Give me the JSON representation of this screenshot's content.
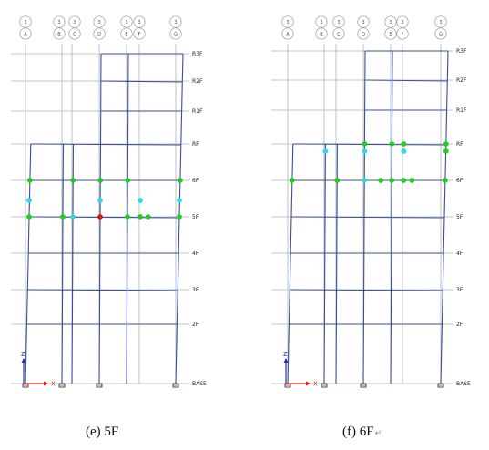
{
  "colors": {
    "grid": "#aeb3bd",
    "frame": "#3a4f95",
    "hinge_green": "#22cc22",
    "hinge_cyan": "#33d6ee",
    "hinge_red": "#dd1111",
    "axis_x": "#e01b1b",
    "axis_z": "#2233bb",
    "bubble": "#999999"
  },
  "axis_labels": {
    "x": "X",
    "z": "Z"
  },
  "stories": [
    "R3F",
    "R2F",
    "R1F",
    "RF",
    "6F",
    "5F",
    "4F",
    "3F",
    "2F",
    "BASE"
  ],
  "grid_lines": [
    {
      "top": "3",
      "bottom": "A"
    },
    {
      "top": "3",
      "bottom": "B"
    },
    {
      "top": "3",
      "bottom": "C"
    },
    {
      "top": "3",
      "bottom": "D"
    },
    {
      "top": "3",
      "bottom": "E"
    },
    {
      "top": "3",
      "bottom": "F"
    },
    {
      "top": "3",
      "bottom": "G"
    }
  ],
  "panels": [
    {
      "id": "e",
      "caption": "(e) 5F",
      "caption_mark": ""
    },
    {
      "id": "f",
      "caption": "(f) 6F",
      "caption_mark": "↵"
    }
  ],
  "hinges": {
    "e": [
      {
        "c": "green",
        "col": 0,
        "lvl": 4
      },
      {
        "c": "green",
        "col": 2,
        "lvl": 4
      },
      {
        "c": "green",
        "col": 3,
        "lvl": 4
      },
      {
        "c": "green",
        "col": 4,
        "lvl": 4
      },
      {
        "c": "green",
        "col": 6,
        "lvl": 4
      },
      {
        "c": "cyan",
        "col": 0,
        "lvl": 4.55
      },
      {
        "c": "cyan",
        "col": 3,
        "lvl": 4.55
      },
      {
        "c": "cyan",
        "col": 5,
        "lvl": 4.55
      },
      {
        "c": "cyan",
        "col": 6,
        "lvl": 4.55
      },
      {
        "c": "green",
        "col": 0,
        "lvl": 5
      },
      {
        "c": "green",
        "col": 1,
        "lvl": 5
      },
      {
        "c": "cyan",
        "col": 2,
        "lvl": 5
      },
      {
        "c": "red",
        "col": 3,
        "lvl": 5
      },
      {
        "c": "green",
        "col": 4,
        "lvl": 5
      },
      {
        "c": "green",
        "col": 5,
        "lvl": 5
      },
      {
        "c": "green",
        "col": 5.2,
        "lvl": 5
      },
      {
        "c": "green",
        "col": 6,
        "lvl": 5
      }
    ],
    "f": [
      {
        "c": "green",
        "col": 3,
        "lvl": 3
      },
      {
        "c": "green",
        "col": 4,
        "lvl": 3
      },
      {
        "c": "green",
        "col": 5,
        "lvl": 3
      },
      {
        "c": "green",
        "col": 6,
        "lvl": 3
      },
      {
        "c": "cyan",
        "col": 1,
        "lvl": 3.2
      },
      {
        "c": "cyan",
        "col": 3,
        "lvl": 3.2
      },
      {
        "c": "cyan",
        "col": 5,
        "lvl": 3.2
      },
      {
        "c": "green",
        "col": 6,
        "lvl": 3.2
      },
      {
        "c": "green",
        "col": 0,
        "lvl": 4
      },
      {
        "c": "green",
        "col": 2,
        "lvl": 4
      },
      {
        "c": "cyan",
        "col": 3,
        "lvl": 4
      },
      {
        "c": "green",
        "col": 3.6,
        "lvl": 4
      },
      {
        "c": "green",
        "col": 4,
        "lvl": 4
      },
      {
        "c": "green",
        "col": 5,
        "lvl": 4
      },
      {
        "c": "green",
        "col": 5.2,
        "lvl": 4
      },
      {
        "c": "green",
        "col": 6,
        "lvl": 4
      }
    ]
  }
}
